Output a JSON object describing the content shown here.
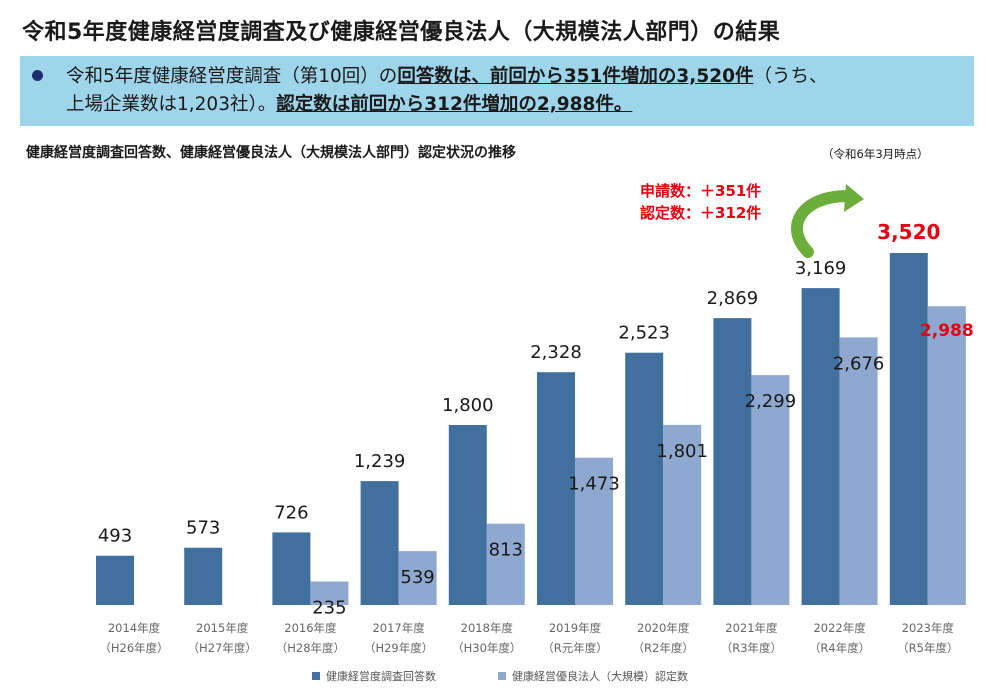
{
  "title": "令和5年度健康経営度調査及び健康経営優良法人（大規模法人部門）の結果",
  "summary": {
    "line1_plain": "令和5年度健康経営度調査（第10回）の",
    "line1_bold": "回答数は、前回から351件増加の3,520件",
    "line1_tail": "（うち、",
    "line2_plain": "上場企業数は1,203社）。",
    "line2_bold": "認定数は前回から312件増加の2,988件。"
  },
  "as_of": "（令和6年3月時点）",
  "increase_note": {
    "applications": "申請数：＋351件",
    "certified": "認定数：＋312件"
  },
  "colors": {
    "responses": "#41709f",
    "certified": "#8fa8cf",
    "highlight": "#e60012",
    "arrow": "#6cae3c",
    "summary_bg": "#9fd5ea"
  },
  "chart_data": {
    "type": "bar",
    "title": "健康経営度調査回答数、健康経営優良法人（大規模法人部門）認定状況の推移",
    "categories": [
      "2014年度",
      "2015年度",
      "2016年度",
      "2017年度",
      "2018年度",
      "2019年度",
      "2020年度",
      "2021年度",
      "2022年度",
      "2023年度"
    ],
    "sub_categories": [
      "（H26年度）",
      "（H27年度）",
      "（H28年度）",
      "（H29年度）",
      "（H30年度）",
      "（R元年度）",
      "（R2年度）",
      "（R3年度）",
      "（R4年度）",
      "（R5年度）"
    ],
    "series": [
      {
        "name": "健康経営度調査回答数",
        "values": [
          493,
          573,
          726,
          1239,
          1800,
          2328,
          2523,
          2869,
          3169,
          3520
        ],
        "labels": [
          "493",
          "573",
          "726",
          "1,239",
          "1,800",
          "2,328",
          "2,523",
          "2,869",
          "3,169",
          "3,520"
        ]
      },
      {
        "name": "健康経営優良法人（大規模）認定数",
        "values": [
          null,
          null,
          235,
          539,
          813,
          1473,
          1801,
          2299,
          2676,
          2988
        ],
        "labels": [
          null,
          null,
          "235",
          "539",
          "813",
          "1,473",
          "1,801",
          "2,299",
          "2,676",
          "2,988"
        ]
      }
    ],
    "ylim": [
      0,
      3800
    ],
    "grid": false,
    "legend_position": "bottom"
  }
}
